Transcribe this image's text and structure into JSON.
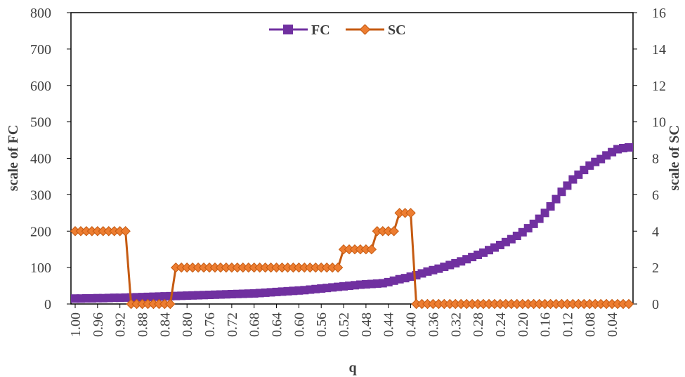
{
  "chart_data": {
    "type": "line",
    "xlabel": "q",
    "ylabel": "scale of FC",
    "y2label": "scale of SC",
    "ylim": [
      0,
      800
    ],
    "y2lim": [
      0,
      16
    ],
    "yticks": [
      "0",
      "100",
      "200",
      "300",
      "400",
      "500",
      "600",
      "700",
      "800"
    ],
    "y2ticks": [
      "0",
      "2",
      "4",
      "6",
      "8",
      "10",
      "12",
      "14",
      "16"
    ],
    "xticks": [
      "1.00",
      "0.96",
      "0.92",
      "0.88",
      "0.84",
      "0.80",
      "0.76",
      "0.72",
      "0.68",
      "0.64",
      "0.60",
      "0.56",
      "0.52",
      "0.48",
      "0.44",
      "0.40",
      "0.36",
      "0.32",
      "0.28",
      "0.24",
      "0.20",
      "0.16",
      "0.12",
      "0.08",
      "0.04"
    ],
    "x_reversed": true,
    "x_step": 0.01,
    "x": [
      1.0,
      0.99,
      0.98,
      0.97,
      0.96,
      0.95,
      0.94,
      0.93,
      0.92,
      0.91,
      0.9,
      0.89,
      0.88,
      0.87,
      0.86,
      0.85,
      0.84,
      0.83,
      0.82,
      0.81,
      0.8,
      0.79,
      0.78,
      0.77,
      0.76,
      0.75,
      0.74,
      0.73,
      0.72,
      0.71,
      0.7,
      0.69,
      0.68,
      0.67,
      0.66,
      0.65,
      0.64,
      0.63,
      0.62,
      0.61,
      0.6,
      0.59,
      0.58,
      0.57,
      0.56,
      0.55,
      0.54,
      0.53,
      0.52,
      0.51,
      0.5,
      0.49,
      0.48,
      0.47,
      0.46,
      0.45,
      0.44,
      0.43,
      0.42,
      0.41,
      0.4,
      0.39,
      0.38,
      0.37,
      0.36,
      0.35,
      0.34,
      0.33,
      0.32,
      0.31,
      0.3,
      0.29,
      0.28,
      0.27,
      0.26,
      0.25,
      0.24,
      0.23,
      0.22,
      0.21,
      0.2,
      0.19,
      0.18,
      0.17,
      0.16,
      0.15,
      0.14,
      0.13,
      0.12,
      0.11,
      0.1,
      0.09,
      0.08,
      0.07,
      0.06,
      0.05,
      0.04,
      0.03,
      0.02,
      0.01
    ],
    "series": [
      {
        "name": "FC",
        "axis": "left",
        "color": "#7030A0",
        "marker": "square",
        "values": [
          15,
          15,
          15.5,
          15.5,
          16,
          16,
          16.5,
          17,
          17,
          17.5,
          18,
          18.5,
          19,
          19.5,
          20,
          20.5,
          21,
          21.5,
          22,
          22.5,
          23,
          23.5,
          24,
          24.5,
          25,
          25.5,
          26,
          26.5,
          27,
          27.5,
          28,
          28.5,
          29,
          30,
          31,
          32,
          33,
          34,
          35,
          36,
          37,
          38,
          39.5,
          41,
          42.5,
          44,
          45.5,
          47,
          48.5,
          50,
          51.5,
          53,
          54,
          55,
          56,
          57,
          60,
          64,
          68,
          71,
          75,
          79,
          84,
          89,
          93,
          97,
          102,
          107,
          112,
          117,
          123,
          129,
          135,
          141,
          148,
          155,
          162,
          170,
          178,
          187,
          197,
          208,
          220,
          234,
          250,
          268,
          288,
          308,
          325,
          342,
          355,
          368,
          380,
          390,
          398,
          408,
          417,
          425,
          428,
          430
        ]
      },
      {
        "name": "SC",
        "axis": "right",
        "color": "#C55A11",
        "marker": "diamond",
        "values": [
          4,
          4,
          4,
          4,
          4,
          4,
          4,
          4,
          4,
          4,
          0,
          0,
          0,
          0,
          0,
          0,
          0,
          0,
          2,
          2,
          2,
          2,
          2,
          2,
          2,
          2,
          2,
          2,
          2,
          2,
          2,
          2,
          2,
          2,
          2,
          2,
          2,
          2,
          2,
          2,
          2,
          2,
          2,
          2,
          2,
          2,
          2,
          2,
          3,
          3,
          3,
          3,
          3,
          3,
          4,
          4,
          4,
          4,
          5,
          5,
          5,
          0,
          0,
          0,
          0,
          0,
          0,
          0,
          0,
          0,
          0,
          0,
          0,
          0,
          0,
          0,
          0,
          0,
          0,
          0,
          0,
          0,
          0,
          0,
          0,
          0,
          0,
          0,
          0,
          0,
          0,
          0,
          0,
          0,
          0,
          0,
          0,
          0,
          0,
          0
        ]
      }
    ],
    "legend": "top-center",
    "grid": false
  }
}
